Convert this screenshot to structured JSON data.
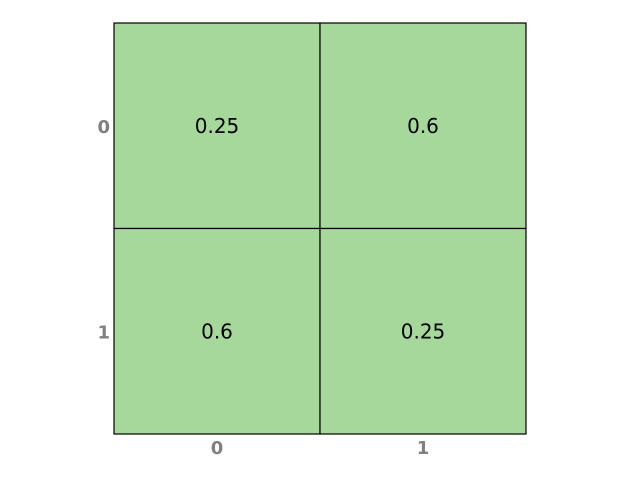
{
  "chart_data": {
    "type": "table",
    "rows": [
      "0",
      "1"
    ],
    "columns": [
      "0",
      "1"
    ],
    "values": [
      [
        "0.25",
        "0.6"
      ],
      [
        "0.6",
        "0.25"
      ]
    ],
    "title": "",
    "xlabel": "",
    "ylabel": "",
    "grid": true,
    "legend": "none",
    "colors": {
      "cell_fill": "#a5d89a",
      "grid_line": "#000000",
      "tick_label": "#808080",
      "cell_text": "#000000"
    }
  }
}
